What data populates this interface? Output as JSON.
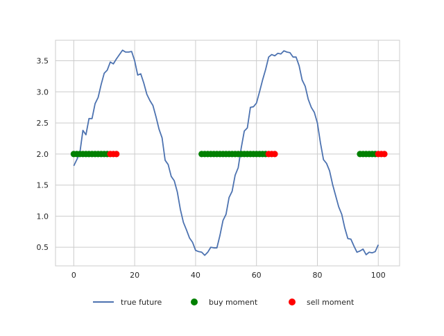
{
  "chart_data": {
    "type": "line",
    "title": "",
    "xlabel": "",
    "ylabel": "",
    "xlim": [
      -6,
      107
    ],
    "ylim": [
      0.2,
      3.83
    ],
    "xticks": [
      0,
      20,
      40,
      60,
      80,
      100
    ],
    "yticks": [
      0.5,
      1.0,
      1.5,
      2.0,
      2.5,
      3.0,
      3.5
    ],
    "xtick_labels": [
      "0",
      "20",
      "40",
      "60",
      "80",
      "100"
    ],
    "ytick_labels": [
      "0.5",
      "1.0",
      "1.5",
      "2.0",
      "2.5",
      "3.0",
      "3.5"
    ],
    "grid": true,
    "legend_position": "bottom-center",
    "series": [
      {
        "name": "true future",
        "kind": "line",
        "color": "#4c72b0",
        "x": [
          0,
          1,
          2,
          3,
          4,
          5,
          6,
          7,
          8,
          9,
          10,
          11,
          12,
          13,
          14,
          15,
          16,
          17,
          18,
          19,
          20,
          21,
          22,
          23,
          24,
          25,
          26,
          27,
          28,
          29,
          30,
          31,
          32,
          33,
          34,
          35,
          36,
          37,
          38,
          39,
          40,
          41,
          42,
          43,
          44,
          45,
          46,
          47,
          48,
          49,
          50,
          51,
          52,
          53,
          54,
          55,
          56,
          57,
          58,
          59,
          60,
          61,
          62,
          63,
          64,
          65,
          66,
          67,
          68,
          69,
          70,
          71,
          72,
          73,
          74,
          75,
          76,
          77,
          78,
          79,
          80,
          81,
          82,
          83,
          84,
          85,
          86,
          87,
          88,
          89,
          90,
          91,
          92,
          93,
          94,
          95,
          96,
          97,
          98,
          99,
          100
        ],
        "y": [
          1.81,
          1.91,
          2.02,
          2.38,
          2.31,
          2.57,
          2.57,
          2.81,
          2.91,
          3.12,
          3.3,
          3.35,
          3.48,
          3.45,
          3.53,
          3.6,
          3.67,
          3.64,
          3.64,
          3.65,
          3.5,
          3.27,
          3.29,
          3.14,
          2.96,
          2.86,
          2.78,
          2.6,
          2.4,
          2.26,
          1.9,
          1.83,
          1.64,
          1.57,
          1.39,
          1.11,
          0.9,
          0.78,
          0.65,
          0.58,
          0.45,
          0.43,
          0.42,
          0.37,
          0.42,
          0.5,
          0.49,
          0.49,
          0.69,
          0.93,
          1.03,
          1.3,
          1.4,
          1.66,
          1.78,
          2.1,
          2.37,
          2.42,
          2.75,
          2.76,
          2.82,
          3.0,
          3.19,
          3.36,
          3.56,
          3.6,
          3.58,
          3.62,
          3.61,
          3.66,
          3.64,
          3.63,
          3.56,
          3.56,
          3.42,
          3.19,
          3.09,
          2.88,
          2.75,
          2.67,
          2.5,
          2.18,
          1.91,
          1.85,
          1.73,
          1.51,
          1.33,
          1.15,
          1.03,
          0.81,
          0.64,
          0.63,
          0.52,
          0.42,
          0.44,
          0.47,
          0.38,
          0.42,
          0.41,
          0.43,
          0.54
        ]
      },
      {
        "name": "buy moment",
        "kind": "scatter",
        "color": "#008000",
        "y_value": 2.0,
        "x": [
          0,
          1,
          2,
          3,
          4,
          5,
          6,
          7,
          8,
          9,
          10,
          11,
          42,
          43,
          44,
          45,
          46,
          47,
          48,
          49,
          50,
          51,
          52,
          53,
          54,
          55,
          56,
          57,
          58,
          59,
          60,
          61,
          62,
          63,
          94,
          95,
          96,
          97,
          98,
          99
        ]
      },
      {
        "name": "sell moment",
        "kind": "scatter",
        "color": "#ff0000",
        "y_value": 2.0,
        "x": [
          12,
          13,
          14,
          64,
          65,
          66,
          100,
          101,
          102
        ]
      }
    ]
  }
}
